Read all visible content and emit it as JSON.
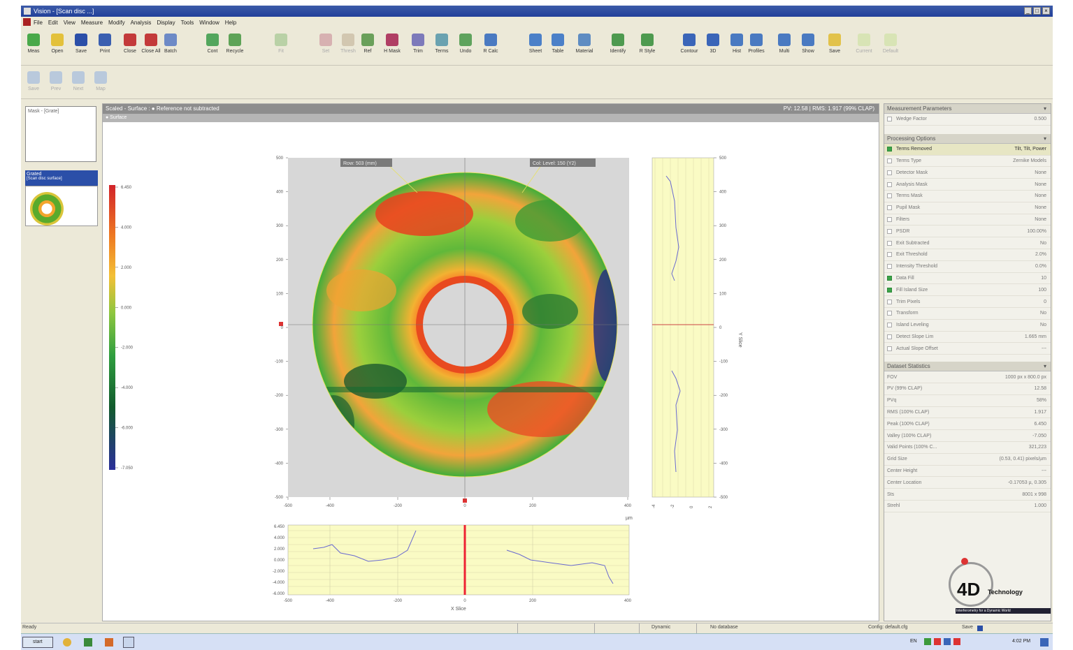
{
  "window": {
    "title": "Vision - [Scan disc ...]"
  },
  "menu": [
    "File",
    "Edit",
    "View",
    "Measure",
    "Modify",
    "Analysis",
    "Display",
    "Tools",
    "Window",
    "Help"
  ],
  "toolbar": {
    "buttons": [
      {
        "label": "Meas",
        "color": "#49a94a"
      },
      {
        "label": "Open",
        "color": "#e3c13b"
      },
      {
        "label": "Save",
        "color": "#2b4fa8"
      },
      {
        "label": "Print",
        "color": "#3a5fb0"
      },
      {
        "label": "Close",
        "color": "#c33a3a"
      },
      {
        "label": "Close All",
        "color": "#c33a3a"
      },
      {
        "label": "Batch",
        "color": "#6d8ac6"
      },
      {
        "label": "Cont",
        "color": "#53a65d"
      },
      {
        "label": "Recycle",
        "color": "#5ea357"
      },
      {
        "label": "Fit",
        "color": "#b9d1a6",
        "disabled": true
      },
      {
        "label": "Set",
        "color": "#d7b1b1",
        "disabled": true
      },
      {
        "label": "Thresh",
        "color": "#d2c7b0",
        "disabled": true
      },
      {
        "label": "Ref",
        "color": "#6aa05a"
      },
      {
        "label": "H Mask",
        "color": "#b03f64"
      },
      {
        "label": "Trim",
        "color": "#7d7aba"
      },
      {
        "label": "Terms",
        "color": "#6aa2b0"
      },
      {
        "label": "Undo",
        "color": "#5fa35d"
      },
      {
        "label": "R Calc",
        "color": "#4a7ac1"
      },
      {
        "label": "Sheet",
        "color": "#4b80c8"
      },
      {
        "label": "Table",
        "color": "#4b80c8"
      },
      {
        "label": "Material",
        "color": "#5e8cc2"
      },
      {
        "label": "Identify",
        "color": "#4e9a4f"
      },
      {
        "label": "R Style",
        "color": "#4e9a4f"
      },
      {
        "label": "Contour",
        "color": "#3a65b8"
      },
      {
        "label": "3D",
        "color": "#3a65b8"
      },
      {
        "label": "Hist",
        "color": "#4a7ac1"
      },
      {
        "label": "Profiles",
        "color": "#4a7ac1"
      },
      {
        "label": "Multi",
        "color": "#4a7ac1"
      },
      {
        "label": "Show",
        "color": "#4a7ac1"
      },
      {
        "label": "Save",
        "color": "#e2c24a"
      },
      {
        "label": "Current",
        "color": "#d8e4b5",
        "disabled": true
      },
      {
        "label": "Default",
        "color": "#d8e4b5",
        "disabled": true
      }
    ],
    "row2": [
      {
        "label": "Save"
      },
      {
        "label": "Prev"
      },
      {
        "label": "Next"
      },
      {
        "label": "Map"
      }
    ]
  },
  "left_panel": {
    "thumb_title": "Mask - [Grate]",
    "list_header": "Grated",
    "list_sub": "[Scan disc surface]"
  },
  "main": {
    "header": "Scaled - Surface : ● Reference not subtracted",
    "header_right": "PV: 12.58 | RMS: 1.917 (99% CLAP)",
    "subheader": "● Surface",
    "top_labels": [
      "Row: 503 (mm)",
      "Col: Level: 150 (Y2)"
    ],
    "colorbar_ticks": [
      "6.450",
      "4.000",
      "2.000",
      "0.000",
      "-2.000",
      "-4.000",
      "-6.000",
      "-7.050"
    ],
    "y_axis_ticks": [
      "500",
      "400",
      "300",
      "200",
      "100",
      "0",
      "-100",
      "-200",
      "-300",
      "-400",
      "-500"
    ],
    "x_axis_ticks": [
      "-500",
      "-400",
      "-200",
      "0",
      "200",
      "400"
    ],
    "x_unit": "µm",
    "y_slice_label": "Y Slice",
    "y_slice_ticks": [
      "500",
      "400",
      "300",
      "200",
      "100",
      "0",
      "-100",
      "-200",
      "-300",
      "-400",
      "-500"
    ],
    "y_slice_x_ticks": [
      "-4",
      "-2",
      "0",
      "2"
    ],
    "x_slice_label": "X Slice",
    "x_slice_y_ticks": [
      "6.450",
      "4.000",
      "2.000",
      "0.000",
      "-2.000",
      "-4.000",
      "-6.000"
    ],
    "x_slice_x_ticks": [
      "-500",
      "-400",
      "-200",
      "0",
      "200",
      "400"
    ]
  },
  "measurement_parameters": {
    "title": "Measurement Parameters",
    "rows": [
      {
        "k": "Wedge Factor",
        "v": "0.500"
      }
    ]
  },
  "processing_options": {
    "title": "Processing Options",
    "rows": [
      {
        "k": "Terms Removed",
        "v": "Tilt, Tilt, Power",
        "on": true,
        "hl": true
      },
      {
        "k": "Terms Type",
        "v": "Zernike Models",
        "on": false
      },
      {
        "k": "Detector Mask",
        "v": "None",
        "on": false
      },
      {
        "k": "Analysis Mask",
        "v": "None",
        "on": false
      },
      {
        "k": "Terms Mask",
        "v": "None",
        "on": false
      },
      {
        "k": "Pupil Mask",
        "v": "None",
        "on": false
      },
      {
        "k": "Filters",
        "v": "None",
        "on": false
      },
      {
        "k": "PSDR",
        "v": "100.00%",
        "on": false
      },
      {
        "k": "Exit Subtracted",
        "v": "No",
        "on": false
      },
      {
        "k": "Exit Threshold",
        "v": "2.0%",
        "on": false
      },
      {
        "k": "Intensity Threshold",
        "v": "0.0%",
        "on": false
      },
      {
        "k": "Data Fill",
        "v": "10",
        "on": true
      },
      {
        "k": "Fill Island Size",
        "v": "100",
        "on": true
      },
      {
        "k": "Trim Pixels",
        "v": "0",
        "on": false
      },
      {
        "k": "Transform",
        "v": "No",
        "on": false
      },
      {
        "k": "Island Leveling",
        "v": "No",
        "on": false
      },
      {
        "k": "Detect Slope Lim",
        "v": "1.665 mm",
        "on": false
      },
      {
        "k": "Actual Slope Offset",
        "v": "---",
        "on": false
      }
    ]
  },
  "dataset_statistics": {
    "title": "Dataset Statistics",
    "rows": [
      {
        "k": "FOV",
        "v": "1000 px x 800.0 px"
      },
      {
        "k": "PV (99% CLAP)",
        "v": "12.58"
      },
      {
        "k": "PVq",
        "v": "58%"
      },
      {
        "k": "RMS (100% CLAP)",
        "v": "1.917"
      },
      {
        "k": "Peak (100% CLAP)",
        "v": "6.450"
      },
      {
        "k": "Valley (100% CLAP)",
        "v": "-7.050"
      },
      {
        "k": "Valid Points (100% C...",
        "v": "321,223"
      },
      {
        "k": "Grid Size",
        "v": "(0.53, 0.41) pixels/µm"
      },
      {
        "k": "Center Height",
        "v": "---"
      },
      {
        "k": "Center Location",
        "v": "-0.17053 µ, 0.305"
      },
      {
        "k": "Sts",
        "v": "8001 x 998"
      },
      {
        "k": "Strehl",
        "v": "1.000"
      }
    ]
  },
  "logo": {
    "text": "4D",
    "subtext": "Technology",
    "tagline": "Interferometry for a Dynamic World"
  },
  "status": {
    "left": "Ready",
    "mid": "Dynamic",
    "mid2": "No database",
    "cfg": "Config: default.cfg",
    "save": "Save"
  },
  "taskbar": {
    "start": "start",
    "lang": "EN",
    "clock": "4:02 PM"
  },
  "colors": {
    "accent": "#2b4fa8",
    "titlebar": "#22409a"
  }
}
